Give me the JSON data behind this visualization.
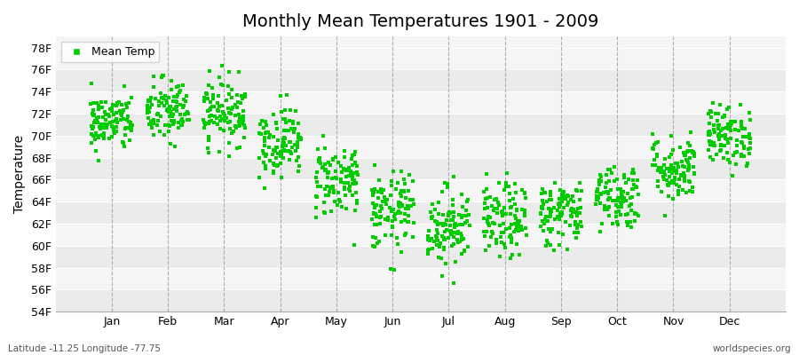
{
  "title": "Monthly Mean Temperatures 1901 - 2009",
  "ylabel": "Temperature",
  "xlabel_months": [
    "Jan",
    "Feb",
    "Mar",
    "Apr",
    "May",
    "Jun",
    "Jul",
    "Aug",
    "Sep",
    "Oct",
    "Nov",
    "Dec"
  ],
  "ylim": [
    54,
    79
  ],
  "yticks": [
    54,
    56,
    58,
    60,
    62,
    64,
    66,
    68,
    70,
    72,
    74,
    76,
    78
  ],
  "ytick_labels": [
    "54F",
    "56F",
    "58F",
    "60F",
    "62F",
    "64F",
    "66F",
    "68F",
    "70F",
    "72F",
    "74F",
    "76F",
    "78F"
  ],
  "marker_color": "#00cc00",
  "marker_size": 3,
  "background_color": "#ffffff",
  "plot_bg_even": "#ebebeb",
  "plot_bg_odd": "#f5f5f5",
  "vline_color": "#999999",
  "title_fontsize": 14,
  "axis_fontsize": 9,
  "legend_label": "Mean Temp",
  "footer_left": "Latitude -11.25 Longitude -77.75",
  "footer_right": "worldspecies.org",
  "n_years": 109,
  "monthly_means": [
    71.2,
    72.2,
    72.2,
    69.5,
    66.0,
    63.0,
    61.8,
    62.2,
    63.0,
    64.5,
    67.0,
    70.0
  ],
  "monthly_stds": [
    1.3,
    1.5,
    1.5,
    1.6,
    1.7,
    1.8,
    1.8,
    1.7,
    1.5,
    1.5,
    1.5,
    1.4
  ],
  "seed": 42,
  "xlim": [
    0,
    13
  ],
  "month_x_positions": [
    1,
    2,
    3,
    4,
    5,
    6,
    7,
    8,
    9,
    10,
    11,
    12
  ]
}
